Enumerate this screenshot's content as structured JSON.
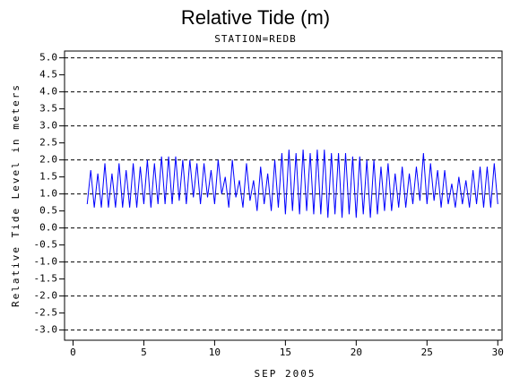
{
  "chart_data": {
    "type": "line",
    "title": "Relative Tide (m)",
    "subtitle": "STATION=REDB",
    "xlabel": "SEP 2005",
    "ylabel": "Relative Tide Level in meters",
    "color": "#0000ff",
    "grid": true,
    "xlim": [
      -0.6,
      30.3
    ],
    "xticks": [
      0,
      5,
      10,
      15,
      20,
      25,
      30
    ],
    "ylim": [
      -3.3,
      5.2
    ],
    "yticks": [
      {
        "value": 5,
        "label": "5.0"
      },
      {
        "value": 4.5,
        "label": "4.5"
      },
      {
        "value": 4,
        "label": "4.0"
      },
      {
        "value": 3.5,
        "label": "3.5"
      },
      {
        "value": 3,
        "label": "3.0"
      },
      {
        "value": 2.5,
        "label": "2.5"
      },
      {
        "value": 2,
        "label": "2.0"
      },
      {
        "value": 1.5,
        "label": "1.5"
      },
      {
        "value": 1,
        "label": "1.0"
      },
      {
        "value": 0.5,
        "label": "0.5"
      },
      {
        "value": 0,
        "label": "0.0"
      },
      {
        "value": -0.5,
        "label": "-0.5"
      },
      {
        "value": -1,
        "label": "-1.0"
      },
      {
        "value": -1.5,
        "label": "-1.5"
      },
      {
        "value": -2,
        "label": "-2.0"
      },
      {
        "value": -2.5,
        "label": "-2.5"
      },
      {
        "value": -3,
        "label": "-3.0"
      }
    ],
    "x": [
      1,
      1.25,
      1.5,
      1.75,
      2,
      2.25,
      2.5,
      2.75,
      3,
      3.25,
      3.5,
      3.75,
      4,
      4.25,
      4.5,
      4.75,
      5,
      5.25,
      5.5,
      5.75,
      6,
      6.25,
      6.5,
      6.75,
      7,
      7.25,
      7.5,
      7.75,
      8,
      8.25,
      8.5,
      8.75,
      9,
      9.25,
      9.5,
      9.75,
      10,
      10.25,
      10.5,
      10.75,
      11,
      11.25,
      11.5,
      11.75,
      12,
      12.25,
      12.5,
      12.75,
      13,
      13.25,
      13.5,
      13.75,
      14,
      14.25,
      14.5,
      14.75,
      15,
      15.25,
      15.5,
      15.75,
      16,
      16.25,
      16.5,
      16.75,
      17,
      17.25,
      17.5,
      17.75,
      18,
      18.25,
      18.5,
      18.75,
      19,
      19.25,
      19.5,
      19.75,
      20,
      20.25,
      20.5,
      20.75,
      21,
      21.25,
      21.5,
      21.75,
      22,
      22.25,
      22.5,
      22.75,
      23,
      23.25,
      23.5,
      23.75,
      24,
      24.25,
      24.5,
      24.75,
      25,
      25.25,
      25.5,
      25.75,
      26,
      26.25,
      26.5,
      26.75,
      27,
      27.25,
      27.5,
      27.75,
      28,
      28.25,
      28.5,
      28.75,
      29,
      29.25,
      29.5,
      29.75,
      30
    ],
    "values": [
      0.7,
      1.7,
      0.6,
      1.6,
      0.6,
      1.9,
      0.6,
      1.6,
      0.6,
      1.9,
      0.6,
      1.7,
      0.6,
      1.9,
      0.6,
      1.8,
      0.7,
      2.0,
      0.6,
      1.9,
      0.7,
      2.1,
      0.7,
      2.1,
      0.7,
      2.1,
      0.8,
      2.0,
      0.7,
      2.0,
      0.9,
      1.9,
      0.7,
      1.9,
      0.9,
      1.7,
      0.7,
      2.0,
      1.0,
      1.5,
      0.6,
      2.0,
      0.9,
      1.4,
      0.6,
      1.9,
      0.8,
      1.4,
      0.5,
      1.8,
      0.7,
      1.6,
      0.5,
      2.0,
      0.6,
      2.2,
      0.4,
      2.3,
      0.5,
      2.2,
      0.4,
      2.3,
      0.5,
      2.2,
      0.4,
      2.3,
      0.4,
      2.3,
      0.3,
      2.2,
      0.4,
      2.2,
      0.3,
      2.2,
      0.4,
      2.1,
      0.3,
      2.1,
      0.4,
      2.0,
      0.3,
      2.0,
      0.4,
      1.8,
      0.5,
      1.9,
      0.5,
      1.6,
      0.6,
      1.8,
      0.6,
      1.6,
      0.7,
      1.8,
      0.8,
      2.2,
      0.7,
      1.9,
      0.8,
      1.7,
      0.6,
      1.7,
      0.7,
      1.3,
      0.6,
      1.5,
      0.7,
      1.4,
      0.6,
      1.7,
      0.7,
      1.8,
      0.6,
      1.8,
      0.6,
      1.9,
      0.7
    ]
  }
}
